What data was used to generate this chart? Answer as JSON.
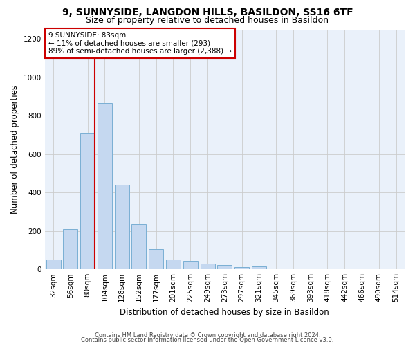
{
  "title1": "9, SUNNYSIDE, LANGDON HILLS, BASILDON, SS16 6TF",
  "title2": "Size of property relative to detached houses in Basildon",
  "xlabel": "Distribution of detached houses by size in Basildon",
  "ylabel": "Number of detached properties",
  "categories": [
    "32sqm",
    "56sqm",
    "80sqm",
    "104sqm",
    "128sqm",
    "152sqm",
    "177sqm",
    "201sqm",
    "225sqm",
    "249sqm",
    "273sqm",
    "297sqm",
    "321sqm",
    "345sqm",
    "369sqm",
    "393sqm",
    "418sqm",
    "442sqm",
    "466sqm",
    "490sqm",
    "514sqm"
  ],
  "values": [
    50,
    210,
    710,
    865,
    440,
    235,
    105,
    50,
    45,
    30,
    22,
    10,
    15,
    0,
    0,
    0,
    0,
    0,
    0,
    0,
    0
  ],
  "bar_color": "#C5D8F0",
  "bar_edge_color": "#7aafd4",
  "annotation_text": "9 SUNNYSIDE: 83sqm\n← 11% of detached houses are smaller (293)\n89% of semi-detached houses are larger (2,388) →",
  "annotation_box_color": "#ffffff",
  "annotation_box_edge": "#cc0000",
  "vline_color": "#cc0000",
  "ylim": [
    0,
    1250
  ],
  "yticks": [
    0,
    200,
    400,
    600,
    800,
    1000,
    1200
  ],
  "footer1": "Contains HM Land Registry data © Crown copyright and database right 2024.",
  "footer2": "Contains public sector information licensed under the Open Government Licence v3.0.",
  "bg_color": "#ffffff",
  "grid_color": "#cccccc",
  "ax_bg_color": "#eaf1fa",
  "title1_fontsize": 10,
  "title2_fontsize": 9,
  "xlabel_fontsize": 8.5,
  "ylabel_fontsize": 8.5,
  "tick_fontsize": 7.5,
  "footer_fontsize": 6.0,
  "annot_fontsize": 7.5
}
